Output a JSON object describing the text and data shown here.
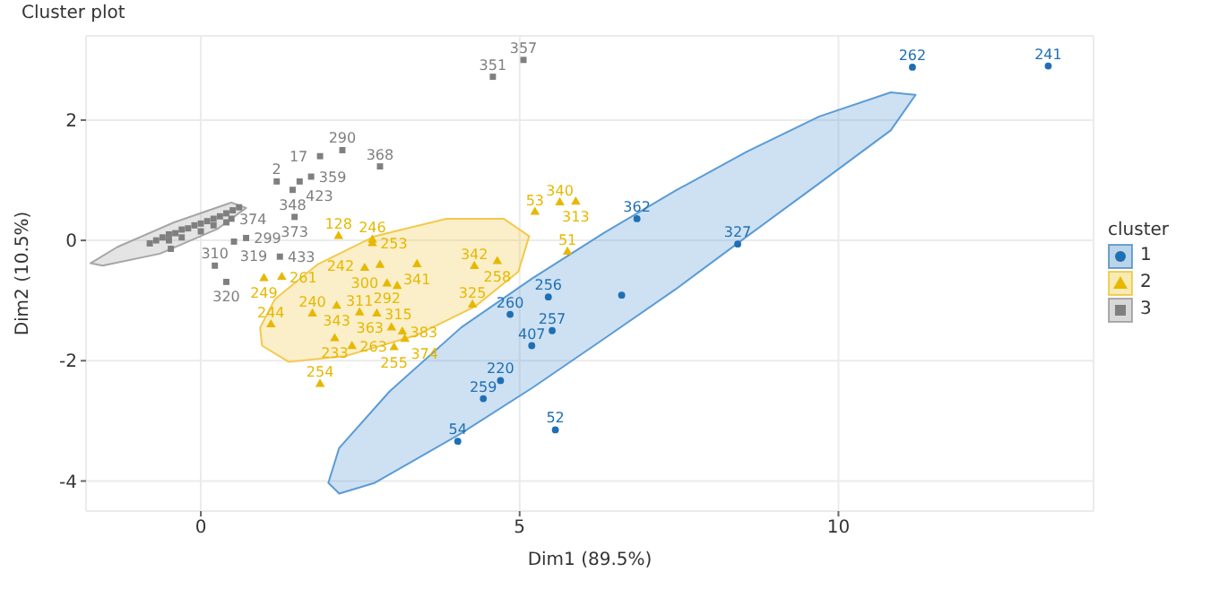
{
  "chart_data": {
    "type": "scatter",
    "title": "Cluster plot",
    "xlabel": "Dim1 (89.5%)",
    "ylabel": "Dim2 (10.5%)",
    "legend_title": "cluster",
    "legend": "right",
    "grid": true,
    "xlim": [
      -1.8,
      14
    ],
    "ylim": [
      -4.5,
      3.4
    ],
    "xticks": [
      0,
      5,
      10
    ],
    "yticks": [
      -4,
      -2,
      0,
      2
    ],
    "series": [
      {
        "type": "area",
        "color": "#5b9bd5",
        "x": [
          11.21,
          10.82,
          9.7,
          8.57,
          7.45,
          6.33,
          5.2,
          4.08,
          2.96,
          2.17,
          2.0,
          2.17,
          2.73,
          4.08,
          5.2,
          6.33,
          7.45,
          8.57,
          9.7,
          10.82
        ],
        "values": [
          2.42,
          2.46,
          2.06,
          1.48,
          0.83,
          0.13,
          -0.63,
          -1.45,
          -2.51,
          -3.45,
          -4.03,
          -4.21,
          -4.03,
          -3.21,
          -2.45,
          -1.63,
          -0.81,
          0.07,
          0.95,
          1.83
        ]
      },
      {
        "type": "area",
        "color": "#f2c94c",
        "x": [
          0.93,
          1.16,
          1.83,
          2.73,
          3.85,
          4.75,
          5.15,
          4.98,
          4.3,
          3.4,
          2.28,
          1.38,
          0.96
        ],
        "values": [
          -1.45,
          -0.98,
          -0.4,
          0.07,
          0.36,
          0.36,
          0.07,
          -0.52,
          -1.1,
          -1.57,
          -1.92,
          -2.02,
          -1.75
        ]
      },
      {
        "type": "area",
        "color": "#a6a6a6",
        "x": [
          -1.73,
          -1.31,
          -0.42,
          0.48,
          0.71,
          0.26,
          -0.64,
          -1.54
        ],
        "values": [
          -0.38,
          -0.11,
          0.3,
          0.63,
          0.54,
          0.19,
          -0.22,
          -0.42
        ]
      },
      {
        "name": "1",
        "color": "#1f6fb4",
        "marker": "circle",
        "x": [
          11.16,
          13.29,
          6.84,
          8.42,
          5.45,
          6.6,
          4.85,
          5.51,
          5.19,
          4.7,
          4.43,
          4.03,
          5.56
        ],
        "values": [
          2.88,
          2.9,
          0.36,
          -0.06,
          -0.94,
          -0.91,
          -1.23,
          -1.5,
          -1.75,
          -2.33,
          -2.63,
          -3.34,
          -3.15
        ]
      },
      {
        "name": "2",
        "color": "#e6b800",
        "marker": "triangle",
        "x": [
          5.24,
          5.63,
          5.88,
          5.75,
          2.16,
          2.69,
          2.69,
          2.57,
          2.81,
          3.39,
          4.29,
          4.65,
          2.92,
          3.08,
          4.26,
          1.75,
          2.13,
          2.49,
          2.76,
          2.99,
          3.16,
          3.2,
          2.1,
          2.37,
          3.03,
          1.1,
          0.99,
          1.27,
          1.87
        ],
        "values": [
          0.47,
          0.63,
          0.64,
          -0.19,
          0.07,
          0.01,
          -0.05,
          -0.46,
          -0.41,
          -0.4,
          -0.43,
          -0.35,
          -0.72,
          -0.76,
          -1.07,
          -1.22,
          -1.09,
          -1.2,
          -1.22,
          -1.45,
          -1.52,
          -1.64,
          -1.63,
          -1.76,
          -1.78,
          -1.4,
          -0.63,
          -0.61,
          -2.39
        ]
      },
      {
        "name": "3",
        "color": "#7f7f7f",
        "marker": "square",
        "x": [
          5.06,
          4.58,
          2.22,
          2.81,
          1.87,
          1.19,
          1.55,
          1.73,
          1.44,
          1.47,
          1.24,
          0.22,
          0.4,
          0.52,
          0.71,
          0.48,
          -0.47,
          -0.8,
          -0.7,
          -0.6,
          -0.5,
          -0.4,
          -0.3,
          -0.2,
          -0.1,
          0,
          0.1,
          0.2,
          0.3,
          0.4,
          0.5,
          -0.5,
          -0.3,
          0,
          0.2,
          0.4,
          0.6
        ],
        "values": [
          3.0,
          2.72,
          1.5,
          1.23,
          1.4,
          0.98,
          0.98,
          1.06,
          0.84,
          0.39,
          -0.27,
          -0.42,
          -0.69,
          -0.02,
          0.04,
          0.36,
          -0.14,
          -0.05,
          0.0,
          0.05,
          0.1,
          0.12,
          0.18,
          0.2,
          0.25,
          0.28,
          0.32,
          0.36,
          0.4,
          0.45,
          0.5,
          0.0,
          0.05,
          0.15,
          0.25,
          0.3,
          0.55
        ]
      }
    ],
    "annotations": [
      {
        "text": "262",
        "x": 11.16,
        "y": 2.88
      },
      {
        "text": "241",
        "x": 13.29,
        "y": 2.9
      },
      {
        "text": "362",
        "x": 6.84,
        "y": 0.36
      },
      {
        "text": "327",
        "x": 8.42,
        "y": -0.06
      },
      {
        "text": "256",
        "x": 5.45,
        "y": -0.94
      },
      {
        "text": "260",
        "x": 4.85,
        "y": -1.23
      },
      {
        "text": "257",
        "x": 5.51,
        "y": -1.5
      },
      {
        "text": "407",
        "x": 5.19,
        "y": -1.75
      },
      {
        "text": "220",
        "x": 4.7,
        "y": -2.33
      },
      {
        "text": "259",
        "x": 4.43,
        "y": -2.63
      },
      {
        "text": "54",
        "x": 4.03,
        "y": -3.34
      },
      {
        "text": "52",
        "x": 5.56,
        "y": -3.15
      },
      {
        "text": "53",
        "x": 5.24,
        "y": 0.47
      },
      {
        "text": "340",
        "x": 5.63,
        "y": 0.63
      },
      {
        "text": "313",
        "x": 5.88,
        "y": 0.64
      },
      {
        "text": "51",
        "x": 5.75,
        "y": -0.19
      },
      {
        "text": "128",
        "x": 2.16,
        "y": 0.07
      },
      {
        "text": "246",
        "x": 2.69,
        "y": 0.01
      },
      {
        "text": "253",
        "x": 2.69,
        "y": -0.05
      },
      {
        "text": "300",
        "x": 2.57,
        "y": -0.46
      },
      {
        "text": "242",
        "x": 2.81,
        "y": -0.41
      },
      {
        "text": "341",
        "x": 3.39,
        "y": -0.4
      },
      {
        "text": "342",
        "x": 4.29,
        "y": -0.43
      },
      {
        "text": "258",
        "x": 4.65,
        "y": -0.35
      },
      {
        "text": "292",
        "x": 2.92,
        "y": -0.72
      },
      {
        "text": "325",
        "x": 4.26,
        "y": -1.07
      },
      {
        "text": "240",
        "x": 1.75,
        "y": -1.22
      },
      {
        "text": "343",
        "x": 2.13,
        "y": -1.09
      },
      {
        "text": "311",
        "x": 2.49,
        "y": -1.2
      },
      {
        "text": "315",
        "x": 2.76,
        "y": -1.22
      },
      {
        "text": "363",
        "x": 2.99,
        "y": -1.45
      },
      {
        "text": "383",
        "x": 3.16,
        "y": -1.52
      },
      {
        "text": "374",
        "x": 3.2,
        "y": -1.64
      },
      {
        "text": "233",
        "x": 2.1,
        "y": -1.63
      },
      {
        "text": "263",
        "x": 2.37,
        "y": -1.76
      },
      {
        "text": "255",
        "x": 3.03,
        "y": -1.78
      },
      {
        "text": "244",
        "x": 1.1,
        "y": -1.4
      },
      {
        "text": "249",
        "x": 0.99,
        "y": -0.63
      },
      {
        "text": "261",
        "x": 1.27,
        "y": -0.61
      },
      {
        "text": "254",
        "x": 1.87,
        "y": -2.39
      },
      {
        "text": "357",
        "x": 5.06,
        "y": 3.0
      },
      {
        "text": "351",
        "x": 4.58,
        "y": 2.72
      },
      {
        "text": "290",
        "x": 2.22,
        "y": 1.5
      },
      {
        "text": "368",
        "x": 2.81,
        "y": 1.23
      },
      {
        "text": "17",
        "x": 1.87,
        "y": 1.4
      },
      {
        "text": "2",
        "x": 1.19,
        "y": 0.98
      },
      {
        "text": "423",
        "x": 1.55,
        "y": 0.98
      },
      {
        "text": "359",
        "x": 1.73,
        "y": 1.06
      },
      {
        "text": "348",
        "x": 1.44,
        "y": 0.84
      },
      {
        "text": "373",
        "x": 1.47,
        "y": 0.39
      },
      {
        "text": "433",
        "x": 1.24,
        "y": -0.27
      },
      {
        "text": "310",
        "x": 0.22,
        "y": -0.42
      },
      {
        "text": "320",
        "x": 0.4,
        "y": -0.69
      },
      {
        "text": "319",
        "x": 0.52,
        "y": -0.02
      },
      {
        "text": "299",
        "x": 0.71,
        "y": 0.04
      },
      {
        "text": "374",
        "x": 0.48,
        "y": 0.36
      }
    ]
  }
}
